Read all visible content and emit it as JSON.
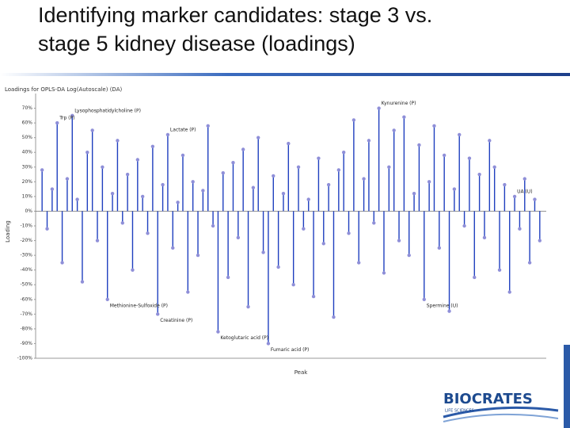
{
  "slide": {
    "title_lines": [
      "Identifying marker candidates: stage 3 vs.",
      "stage 5 kidney disease (loadings)"
    ],
    "logo": "BIOCRATES",
    "logo_sub": "LIFE SCIENCES"
  },
  "chart_data": {
    "type": "stem",
    "title": "Loadings for OPLS-DA Log(Autoscale) (DA)",
    "x_label": "Peak",
    "y_label": "Loading",
    "color": "#1f3fbf",
    "marker_color": "#8f8fd8",
    "grid": false,
    "ylim": [
      -100,
      80
    ],
    "yticks": [
      {
        "value": 70,
        "label": "70%"
      },
      {
        "value": 60,
        "label": "60%"
      },
      {
        "value": 50,
        "label": "50%"
      },
      {
        "value": 40,
        "label": "40%"
      },
      {
        "value": 30,
        "label": "30%"
      },
      {
        "value": 20,
        "label": "20%"
      },
      {
        "value": 10,
        "label": "10%"
      },
      {
        "value": 0,
        "label": "0%"
      },
      {
        "value": -10,
        "label": "-10%"
      },
      {
        "value": -20,
        "label": "-20%"
      },
      {
        "value": -30,
        "label": "-30%"
      },
      {
        "value": -40,
        "label": "-40%"
      },
      {
        "value": -50,
        "label": "-50%"
      },
      {
        "value": -60,
        "label": "-60%"
      },
      {
        "value": -70,
        "label": "-70%"
      },
      {
        "value": -80,
        "label": "-80%"
      },
      {
        "value": -90,
        "label": "-90%"
      },
      {
        "value": -100,
        "label": "-100%"
      }
    ],
    "values": [
      28,
      -12,
      15,
      60,
      -35,
      22,
      65,
      8,
      -48,
      40,
      55,
      -20,
      30,
      -60,
      12,
      48,
      -8,
      25,
      -40,
      35,
      10,
      -15,
      44,
      -70,
      18,
      52,
      -25,
      6,
      38,
      -55,
      20,
      -30,
      14,
      58,
      -10,
      -82,
      26,
      -45,
      33,
      -18,
      42,
      -65,
      16,
      50,
      -28,
      -90,
      24,
      -38,
      12,
      46,
      -50,
      30,
      -12,
      8,
      -58,
      36,
      -22,
      18,
      -72,
      28,
      40,
      -15,
      62,
      -35,
      22,
      48,
      -8,
      70,
      -42,
      30,
      55,
      -20,
      64,
      -30,
      12,
      45,
      -60,
      20,
      58,
      -25,
      38,
      -68,
      15,
      52,
      -10,
      36,
      -45,
      25,
      -18,
      48,
      30,
      -40,
      18,
      -55,
      10,
      -12,
      22,
      -35,
      8,
      -20
    ],
    "annotations": [
      {
        "text": "Trp (P)",
        "index": 3
      },
      {
        "text": "Lysophosphatidylcholine (P)",
        "index": 6
      },
      {
        "text": "Creatinine (P)",
        "index": 23
      },
      {
        "text": "Methionine-Sulfoxide (P)",
        "index": 13
      },
      {
        "text": "Lactate (P)",
        "index": 25
      },
      {
        "text": "Fumaric acid (P)",
        "index": 45
      },
      {
        "text": "Ketoglutaric acid (P)",
        "index": 35
      },
      {
        "text": "Spermine (U)",
        "index": 76
      },
      {
        "text": "Kynurenine (P)",
        "index": 67
      },
      {
        "text": "UA (U)",
        "index": 94
      }
    ]
  }
}
